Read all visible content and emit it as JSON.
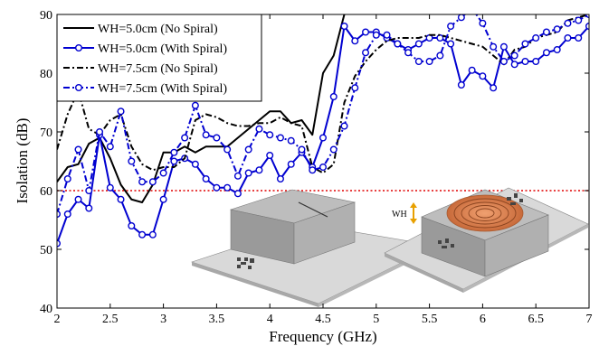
{
  "chart_data": {
    "type": "line",
    "xlabel": "Frequency (GHz)",
    "ylabel": "Isolation (dB)",
    "xlim": [
      2,
      7
    ],
    "ylim": [
      40,
      90
    ],
    "xticks": [
      "2",
      "2.5",
      "3",
      "3.5",
      "4",
      "4.5",
      "5",
      "5.5",
      "6",
      "6.5",
      "7"
    ],
    "yticks": [
      "40",
      "50",
      "60",
      "70",
      "80",
      "90"
    ],
    "grid": false,
    "legend_position": "top-left",
    "reference_line": {
      "y": 60,
      "color": "#e00000",
      "style": "dotted"
    },
    "series": [
      {
        "name": "WH=5.0cm (No Spiral)",
        "color": "#000000",
        "style": "solid",
        "marker": "none",
        "x": [
          2.0,
          2.1,
          2.2,
          2.3,
          2.4,
          2.5,
          2.6,
          2.7,
          2.8,
          2.9,
          3.0,
          3.1,
          3.2,
          3.3,
          3.4,
          3.5,
          3.6,
          3.7,
          3.8,
          3.9,
          4.0,
          4.1,
          4.2,
          4.3,
          4.4,
          4.5,
          4.6,
          4.7
        ],
        "y": [
          61.5,
          64,
          64.5,
          68,
          69,
          65.5,
          61,
          58.5,
          58,
          61,
          66.5,
          66.5,
          67.5,
          66.5,
          67.5,
          67.5,
          67.5,
          69,
          70.5,
          72,
          73.5,
          73.5,
          71.5,
          72,
          69.5,
          80,
          83,
          90
        ]
      },
      {
        "name": "WH=5.0cm (With Spiral)",
        "color": "#0000d0",
        "style": "solid",
        "marker": "circle",
        "x": [
          2.0,
          2.1,
          2.2,
          2.3,
          2.4,
          2.5,
          2.6,
          2.7,
          2.8,
          2.9,
          3.0,
          3.1,
          3.2,
          3.3,
          3.4,
          3.5,
          3.6,
          3.7,
          3.8,
          3.9,
          4.0,
          4.1,
          4.2,
          4.3,
          4.4,
          4.5,
          4.6,
          4.7,
          4.8,
          4.9,
          5.0,
          5.1,
          5.2,
          5.3,
          5.4,
          5.5,
          5.6,
          5.7,
          5.8,
          5.9,
          6.0,
          6.1,
          6.2,
          6.3,
          6.4,
          6.5,
          6.6,
          6.7,
          6.8,
          6.9,
          7.0
        ],
        "y": [
          51,
          56,
          58.5,
          57,
          69.5,
          60.5,
          58.5,
          54,
          52.5,
          52.5,
          58.5,
          65,
          65.5,
          64.5,
          62,
          60.5,
          60.5,
          59.5,
          63,
          63.5,
          66,
          62,
          64.5,
          66.5,
          64,
          69,
          76,
          88,
          85.5,
          87,
          87,
          86,
          85,
          84,
          85,
          86,
          86,
          85,
          78,
          80.5,
          79.5,
          77.5,
          84.5,
          81.5,
          82,
          82,
          83.5,
          84,
          86,
          86,
          88
        ]
      },
      {
        "name": "WH=7.5cm (No Spiral)",
        "color": "#000000",
        "style": "dashdot",
        "marker": "none",
        "x": [
          2.0,
          2.1,
          2.2,
          2.3,
          2.4,
          2.5,
          2.6,
          2.7,
          2.8,
          2.9,
          3.0,
          3.1,
          3.2,
          3.3,
          3.4,
          3.5,
          3.6,
          3.7,
          3.8,
          3.9,
          4.0,
          4.1,
          4.2,
          4.3,
          4.4,
          4.5,
          4.6,
          4.7,
          4.8,
          4.9,
          5.0,
          5.1,
          5.2,
          5.3,
          5.4,
          5.5,
          5.6,
          5.7,
          5.8,
          5.9,
          6.0,
          6.1,
          6.2,
          6.3,
          6.4,
          6.5,
          6.6,
          6.7,
          6.8,
          6.9,
          7.0
        ],
        "y": [
          67,
          73,
          77,
          70.5,
          69.5,
          72,
          73,
          67.5,
          64.5,
          63.5,
          64,
          64,
          65.5,
          72,
          73,
          72.5,
          71.5,
          71,
          71,
          71.5,
          71.5,
          72.5,
          71.5,
          71,
          64,
          63,
          64.5,
          75,
          79.5,
          82,
          84,
          85.5,
          86,
          86,
          86,
          86.5,
          86.5,
          86,
          85.5,
          85,
          84.5,
          83,
          81.5,
          84,
          84.5,
          86,
          86.5,
          87,
          89,
          89.5,
          90
        ]
      },
      {
        "name": "WH=7.5cm (With Spiral)",
        "color": "#0000d0",
        "style": "dashdot",
        "marker": "circle",
        "x": [
          2.0,
          2.1,
          2.2,
          2.3,
          2.4,
          2.5,
          2.6,
          2.7,
          2.8,
          2.9,
          3.0,
          3.1,
          3.2,
          3.3,
          3.4,
          3.5,
          3.6,
          3.7,
          3.8,
          3.9,
          4.0,
          4.1,
          4.2,
          4.3,
          4.4,
          4.5,
          4.6,
          4.7,
          4.8,
          4.9,
          5.0,
          5.1,
          5.2,
          5.3,
          5.4,
          5.5,
          5.6,
          5.7,
          5.8,
          5.9,
          6.0,
          6.1,
          6.2,
          6.3,
          6.4,
          6.5,
          6.6,
          6.7,
          6.8,
          6.9,
          7.0
        ],
        "y": [
          56,
          62,
          67,
          60,
          70,
          67.5,
          73.5,
          65,
          61.5,
          61.5,
          63,
          66.5,
          69,
          74.5,
          69.5,
          69,
          67,
          62.5,
          67,
          70.5,
          69.5,
          69,
          68.5,
          67,
          63.5,
          64,
          67,
          71,
          77.5,
          83.5,
          86.5,
          86.5,
          85,
          83.5,
          82,
          82,
          83,
          88,
          89.5,
          91,
          88.5,
          84.5,
          82,
          83,
          85,
          86,
          87,
          87.5,
          88.5,
          89,
          90
        ]
      }
    ],
    "inset": {
      "wh_label": "WH"
    }
  }
}
